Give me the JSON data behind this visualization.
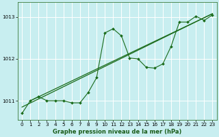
{
  "bg_color": "#c8eef0",
  "grid_color": "#ffffff",
  "line_color": "#1a6b1a",
  "marker_color": "#1a6b1a",
  "title": "Graphe pression niveau de la mer (hPa)",
  "xlim": [
    -0.5,
    23.5
  ],
  "ylim": [
    1010.55,
    1013.35
  ],
  "yticks": [
    1011,
    1012,
    1013
  ],
  "xticks": [
    0,
    1,
    2,
    3,
    4,
    5,
    6,
    7,
    8,
    9,
    10,
    11,
    12,
    13,
    14,
    15,
    16,
    17,
    18,
    19,
    20,
    21,
    22,
    23
  ],
  "series1_x": [
    0,
    1,
    2,
    3,
    4,
    5,
    6,
    7,
    8,
    9,
    10,
    11,
    12,
    13,
    14,
    15,
    16,
    17,
    18,
    19,
    20,
    21,
    22,
    23
  ],
  "series1_y": [
    1010.7,
    1011.0,
    1011.1,
    1011.0,
    1011.0,
    1011.0,
    1010.95,
    1010.95,
    1011.2,
    1011.55,
    1012.62,
    1012.72,
    1012.55,
    1012.02,
    1012.0,
    1011.8,
    1011.78,
    1011.88,
    1012.3,
    1012.88,
    1012.88,
    1013.02,
    1012.92,
    1013.05
  ],
  "trend1_x": [
    0,
    23
  ],
  "trend1_y": [
    1010.85,
    1013.08
  ],
  "trend2_x": [
    1,
    23
  ],
  "trend2_y": [
    1011.0,
    1013.08
  ]
}
